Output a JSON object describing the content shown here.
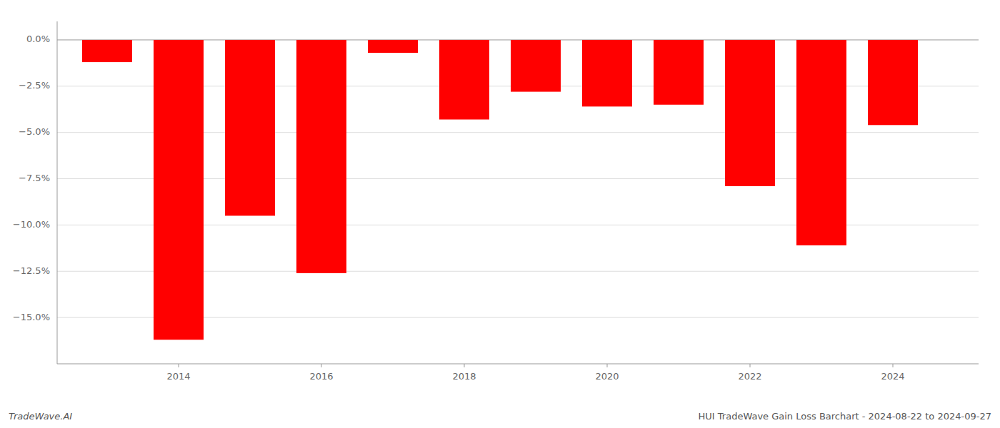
{
  "chart_data": {
    "type": "bar",
    "x": [
      2013,
      2014,
      2015,
      2016,
      2017,
      2018,
      2019,
      2020,
      2021,
      2022,
      2023,
      2024
    ],
    "values": [
      -1.2,
      -16.2,
      -9.5,
      -12.6,
      -0.7,
      -4.3,
      -2.8,
      -3.6,
      -3.5,
      -7.9,
      -11.1,
      -4.6
    ],
    "color": "#ff0000",
    "xlim": [
      2012.3,
      2025.2
    ],
    "xticks": [
      2014,
      2016,
      2018,
      2020,
      2022,
      2024
    ],
    "ylim": [
      -17.5,
      1.0
    ],
    "yticks": [
      {
        "value": 0.0,
        "label": "0.0%"
      },
      {
        "value": -2.5,
        "label": "−2.5%"
      },
      {
        "value": -5.0,
        "label": "−5.0%"
      },
      {
        "value": -7.5,
        "label": "−7.5%"
      },
      {
        "value": -10.0,
        "label": "−10.0%"
      },
      {
        "value": -12.5,
        "label": "−12.5%"
      },
      {
        "value": -15.0,
        "label": "−15.0%"
      }
    ],
    "grid": true,
    "annotations": [
      "TradeWave.AI",
      "HUI TradeWave Gain Loss Barchart - 2024-08-22 to 2024-09-27"
    ]
  }
}
